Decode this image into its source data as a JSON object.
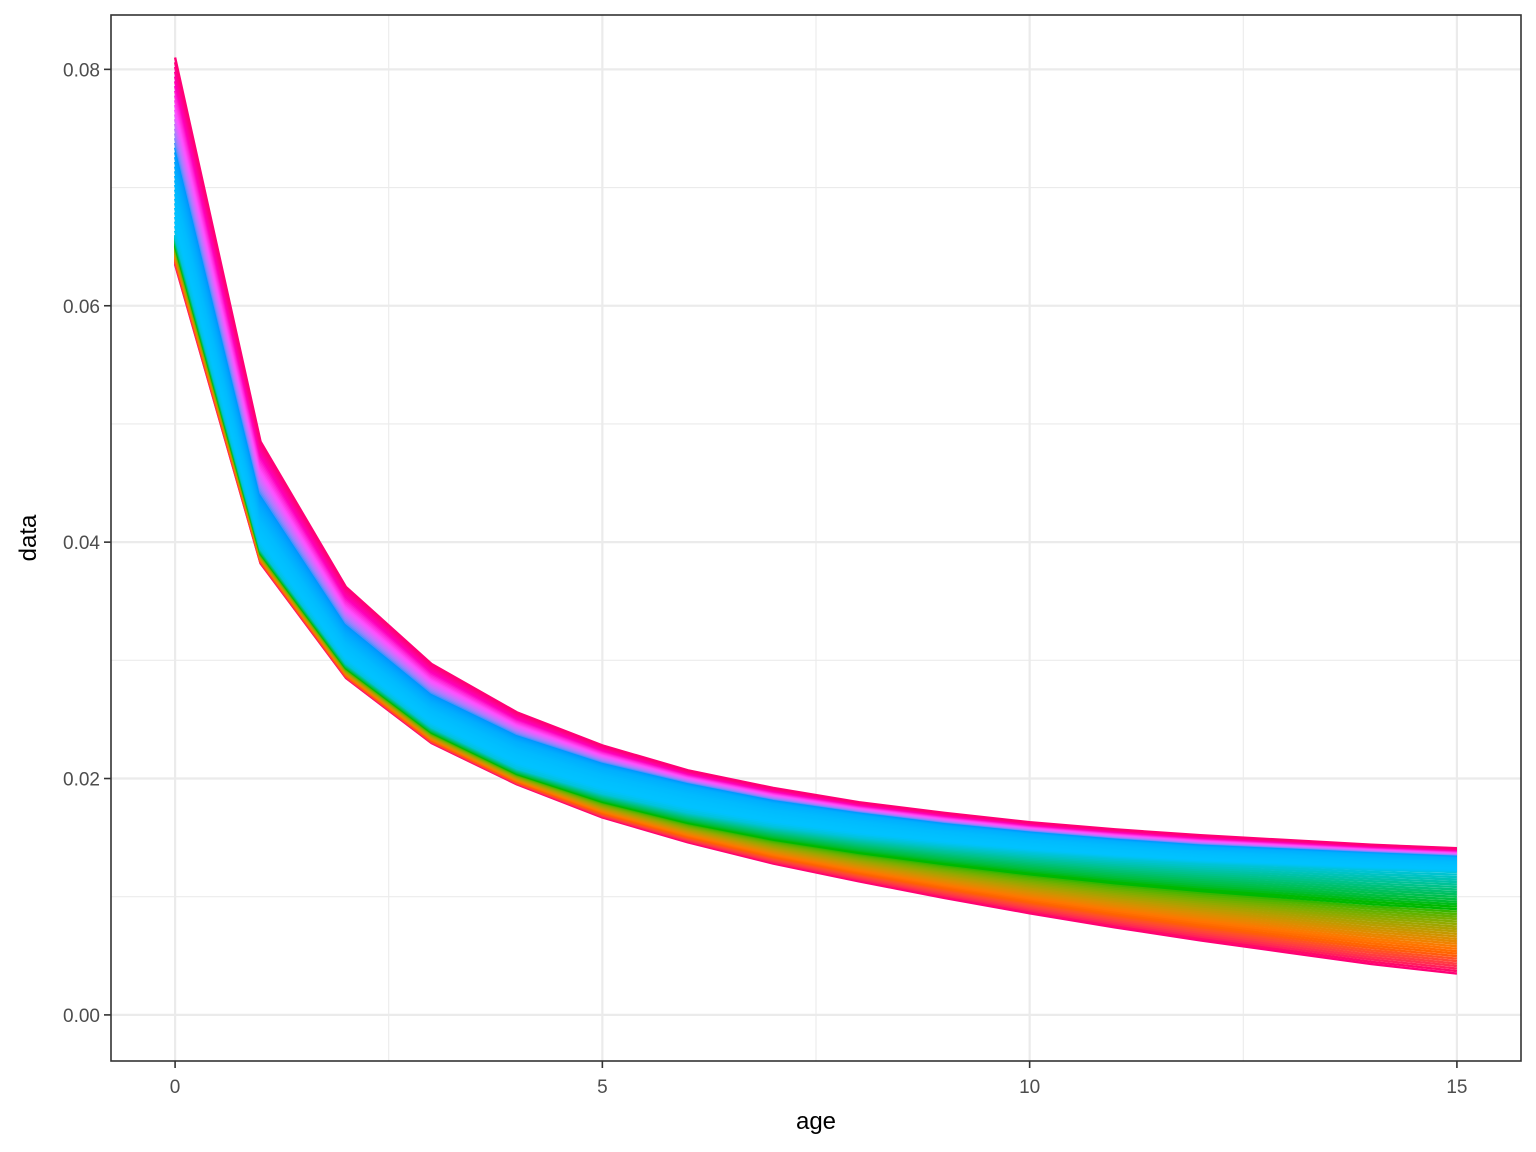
{
  "chart_data": {
    "type": "line",
    "xlabel": "age",
    "ylabel": "data",
    "xlim": [
      -0.75,
      15.75
    ],
    "ylim": [
      -0.0039,
      0.0846
    ],
    "x_ticks": [
      0,
      5,
      10,
      15
    ],
    "x_tick_labels": [
      "0",
      "5",
      "10",
      "15"
    ],
    "y_ticks": [
      0.0,
      0.02,
      0.04,
      0.06,
      0.08
    ],
    "y_tick_labels": [
      "0.00",
      "0.02",
      "0.04",
      "0.06",
      "0.08"
    ],
    "grid": true,
    "legend": "none",
    "x": [
      0,
      1,
      2,
      3,
      4,
      5,
      6,
      7,
      8,
      9,
      10,
      11,
      12,
      13,
      14,
      15
    ],
    "series_count": 80,
    "series_profiles": {
      "bottom": [
        0.0635,
        0.0382,
        0.0285,
        0.023,
        0.0195,
        0.0167,
        0.0146,
        0.0128,
        0.0113,
        0.0099,
        0.0086,
        0.0074,
        0.0063,
        0.0053,
        0.0043,
        0.0035
      ],
      "middle": [
        0.066,
        0.0395,
        0.0298,
        0.0244,
        0.0209,
        0.0188,
        0.0172,
        0.016,
        0.0151,
        0.0144,
        0.0138,
        0.0133,
        0.0129,
        0.0126,
        0.0123,
        0.0121
      ],
      "blue": [
        0.0715,
        0.0428,
        0.0322,
        0.0265,
        0.0232,
        0.021,
        0.0194,
        0.018,
        0.017,
        0.0161,
        0.0154,
        0.0148,
        0.0143,
        0.014,
        0.0137,
        0.0134
      ],
      "top": [
        0.081,
        0.0485,
        0.0362,
        0.0297,
        0.0256,
        0.0228,
        0.0207,
        0.0192,
        0.018,
        0.0171,
        0.0163,
        0.0157,
        0.0152,
        0.0148,
        0.0144,
        0.0141
      ]
    },
    "colors": {
      "background": "#ffffff",
      "grid": "#ebebeb",
      "panel_border": "#333333"
    }
  }
}
